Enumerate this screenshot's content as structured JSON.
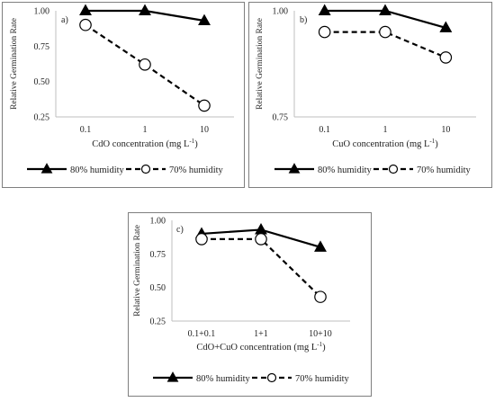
{
  "chart_data": [
    {
      "type": "line",
      "panel_label": "a)",
      "categories": [
        "0.1",
        "1",
        "10"
      ],
      "series": [
        {
          "name": "80% humidity",
          "values": [
            1.0,
            1.0,
            0.93
          ],
          "marker": "triangle",
          "line": "solid"
        },
        {
          "name": "70% humidity",
          "values": [
            0.9,
            0.62,
            0.33
          ],
          "marker": "open-circle",
          "line": "dashed"
        }
      ],
      "xlabel": "CdO concentration (mg L",
      "xlabel_sup": "-1",
      "xlabel_end": ")",
      "ylabel": "Relative Germination Rate",
      "ylim": [
        0.25,
        1.0
      ],
      "yticks": [
        "0.25",
        "0.50",
        "0.75",
        "1.00"
      ],
      "legend": "bottom"
    },
    {
      "type": "line",
      "panel_label": "b)",
      "categories": [
        "0.1",
        "1",
        "10"
      ],
      "series": [
        {
          "name": "80% humidity",
          "values": [
            1.0,
            1.0,
            0.96
          ],
          "marker": "triangle",
          "line": "solid"
        },
        {
          "name": "70% humidity",
          "values": [
            0.95,
            0.95,
            0.89
          ],
          "marker": "open-circle",
          "line": "dashed"
        }
      ],
      "xlabel": "CuO concentration (mg L",
      "xlabel_sup": "-1",
      "xlabel_end": ")",
      "ylabel": "Relative Germination Rate",
      "ylim": [
        0.75,
        1.0
      ],
      "yticks": [
        "0.75",
        "1.00"
      ],
      "legend": "bottom"
    },
    {
      "type": "line",
      "panel_label": "c)",
      "categories": [
        "0.1+0.1",
        "1+1",
        "10+10"
      ],
      "series": [
        {
          "name": "80% humidity",
          "values": [
            0.9,
            0.93,
            0.8
          ],
          "marker": "triangle",
          "line": "solid"
        },
        {
          "name": "70% humidity",
          "values": [
            0.86,
            0.86,
            0.43
          ],
          "marker": "open-circle",
          "line": "dashed"
        }
      ],
      "xlabel": "CdO+CuO concentration (mg L",
      "xlabel_sup": "-1",
      "xlabel_end": ")",
      "ylabel": "Relative Germination Rate",
      "ylim": [
        0.25,
        1.0
      ],
      "yticks": [
        "0.25",
        "0.50",
        "0.75",
        "1.00"
      ],
      "legend": "bottom"
    }
  ],
  "colors": {
    "line": "#000000",
    "frame": "#7f7f7f",
    "axis": "#bfbfbf",
    "text": "#222222"
  }
}
